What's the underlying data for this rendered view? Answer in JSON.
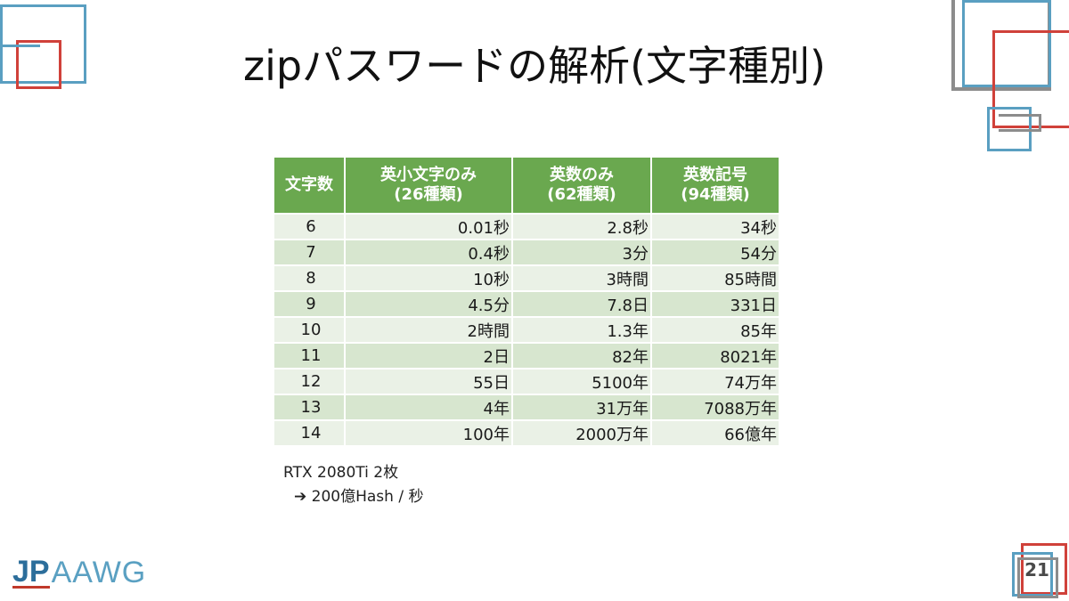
{
  "slide": {
    "title": "zipパスワードの解析(文字種別)",
    "page_number": "21"
  },
  "table": {
    "headers": [
      [
        "文字数",
        ""
      ],
      [
        "英小文字のみ",
        "(26種類)"
      ],
      [
        "英数のみ",
        "(62種類)"
      ],
      [
        "英数記号",
        "(94種類)"
      ]
    ],
    "rows": [
      [
        "6",
        "0.01秒",
        "2.8秒",
        "34秒"
      ],
      [
        "7",
        "0.4秒",
        "3分",
        "54分"
      ],
      [
        "8",
        "10秒",
        "3時間",
        "85時間"
      ],
      [
        "9",
        "4.5分",
        "7.8日",
        "331日"
      ],
      [
        "10",
        "2時間",
        "1.3年",
        "85年"
      ],
      [
        "11",
        "2日",
        "82年",
        "8021年"
      ],
      [
        "12",
        "55日",
        "5100年",
        "74万年"
      ],
      [
        "13",
        "4年",
        "31万年",
        "7088万年"
      ],
      [
        "14",
        "100年",
        "2000万年",
        "66億年"
      ]
    ]
  },
  "note": {
    "line1": "RTX 2080Ti 2枚",
    "arrow": "➔",
    "line2": "200億Hash / 秒"
  },
  "logo": {
    "jp": "JP",
    "aawg": "AAWG"
  },
  "colors": {
    "header_green": "#6aa84f",
    "row_light": "#eaf1e6",
    "row_dark": "#d7e6cf",
    "deco_blue": "#5a9fc1",
    "deco_red": "#d0413a",
    "deco_gray": "#8c8c8c"
  }
}
